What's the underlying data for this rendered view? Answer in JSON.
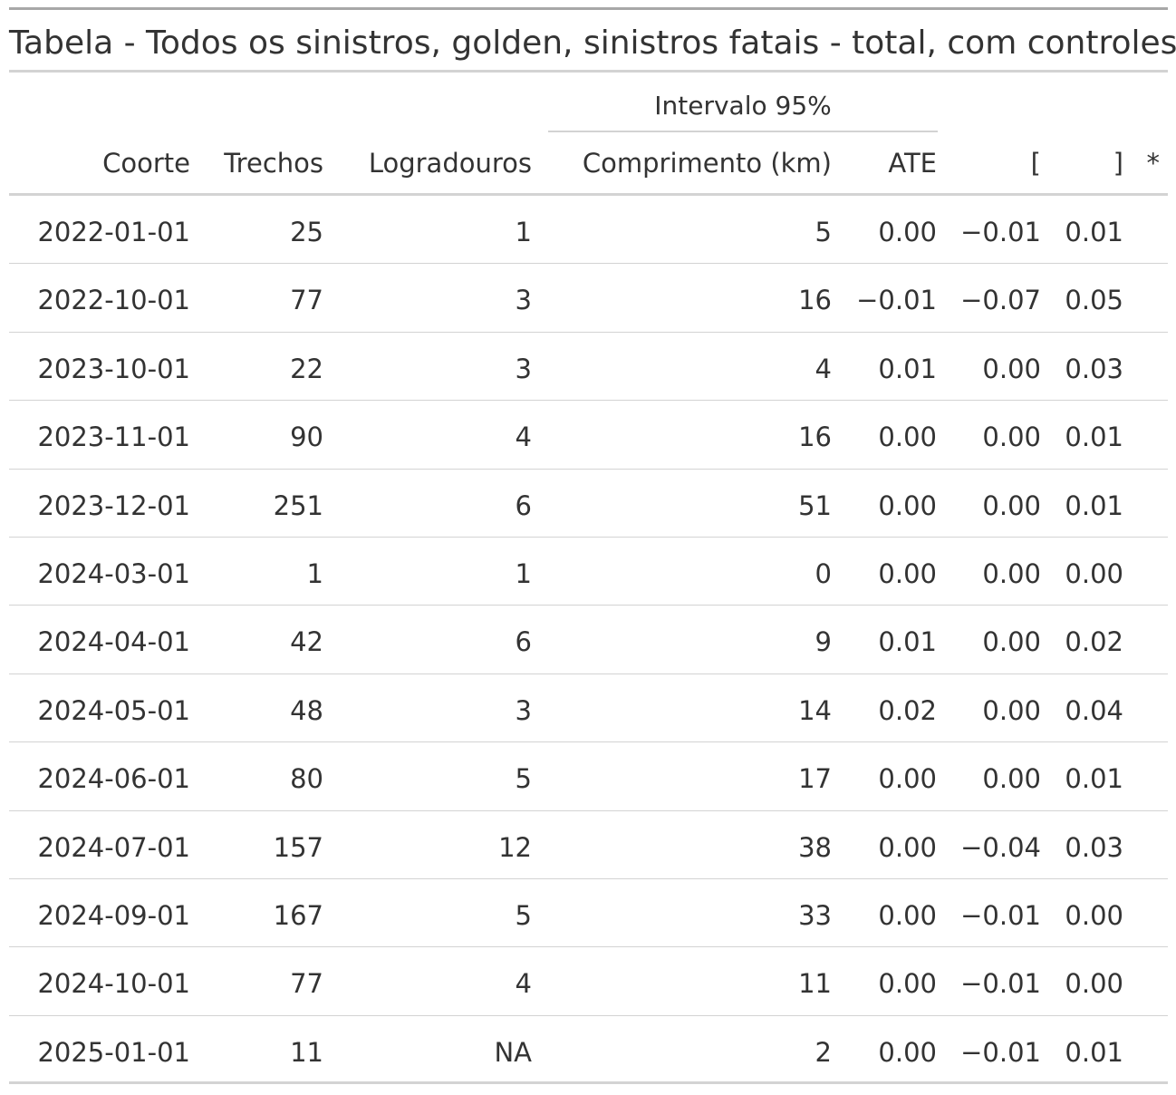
{
  "table": {
    "title": "Tabela - Todos os sinistros, golden, sinistros fatais - total, com controles",
    "spanner_label": "Intervalo 95%",
    "columns": [
      "Coorte",
      "Trechos",
      "Logradouros",
      "Comprimento (km)",
      "ATE",
      "[",
      "]",
      "*"
    ],
    "rows": [
      [
        "2022-01-01",
        "25",
        "1",
        "5",
        "0.00",
        "−0.01",
        "0.01",
        ""
      ],
      [
        "2022-10-01",
        "77",
        "3",
        "16",
        "−0.01",
        "−0.07",
        "0.05",
        ""
      ],
      [
        "2023-10-01",
        "22",
        "3",
        "4",
        "0.01",
        "0.00",
        "0.03",
        ""
      ],
      [
        "2023-11-01",
        "90",
        "4",
        "16",
        "0.00",
        "0.00",
        "0.01",
        ""
      ],
      [
        "2023-12-01",
        "251",
        "6",
        "51",
        "0.00",
        "0.00",
        "0.01",
        ""
      ],
      [
        "2024-03-01",
        "1",
        "1",
        "0",
        "0.00",
        "0.00",
        "0.00",
        ""
      ],
      [
        "2024-04-01",
        "42",
        "6",
        "9",
        "0.01",
        "0.00",
        "0.02",
        ""
      ],
      [
        "2024-05-01",
        "48",
        "3",
        "14",
        "0.02",
        "0.00",
        "0.04",
        ""
      ],
      [
        "2024-06-01",
        "80",
        "5",
        "17",
        "0.00",
        "0.00",
        "0.01",
        ""
      ],
      [
        "2024-07-01",
        "157",
        "12",
        "38",
        "0.00",
        "−0.04",
        "0.03",
        ""
      ],
      [
        "2024-09-01",
        "167",
        "5",
        "33",
        "0.00",
        "−0.01",
        "0.00",
        ""
      ],
      [
        "2024-10-01",
        "77",
        "4",
        "11",
        "0.00",
        "−0.01",
        "0.00",
        ""
      ],
      [
        "2025-01-01",
        "11",
        "NA",
        "2",
        "0.00",
        "−0.01",
        "0.01",
        ""
      ]
    ]
  }
}
